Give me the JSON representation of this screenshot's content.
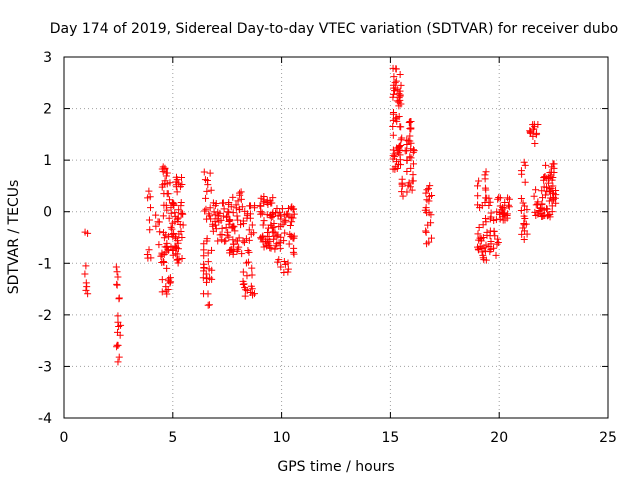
{
  "chart_data": {
    "type": "scatter",
    "title": "Day 174 of 2019, Sidereal Day-to-day VTEC variation (SDTVAR) for receiver dubo",
    "xlabel": "GPS time / hours",
    "ylabel": "SDTVAR / TECUs",
    "xlim": [
      0,
      25
    ],
    "ylim": [
      -4,
      3
    ],
    "xticks": [
      0,
      5,
      10,
      15,
      20,
      25
    ],
    "yticks": [
      -4,
      -3,
      -2,
      -1,
      0,
      1,
      2,
      3
    ],
    "xtick_labels": [
      "0",
      "5",
      "10",
      "15",
      "20",
      "25"
    ],
    "ytick_labels": [
      "-4",
      "-3",
      "-2",
      "-1",
      "0",
      "1",
      "2",
      "3"
    ],
    "grid": true,
    "marker": "+",
    "color": "#ff0000",
    "clusters": [
      {
        "x": [
          0.95,
          1.1
        ],
        "y": [
          -1.8,
          -0.3
        ],
        "n": 8
      },
      {
        "x": [
          2.4,
          2.6
        ],
        "y": [
          -3.0,
          -0.8
        ],
        "n": 18
      },
      {
        "x": [
          3.8,
          4.0
        ],
        "y": [
          -1.5,
          0.45
        ],
        "n": 10
      },
      {
        "x": [
          4.2,
          4.5
        ],
        "y": [
          -1.1,
          0.0
        ],
        "n": 8
      },
      {
        "x": [
          4.5,
          5.0
        ],
        "y": [
          -1.6,
          0.9
        ],
        "n": 60
      },
      {
        "x": [
          5.0,
          5.5
        ],
        "y": [
          -1.0,
          0.7
        ],
        "n": 50
      },
      {
        "x": [
          6.4,
          6.8
        ],
        "y": [
          -1.85,
          0.9
        ],
        "n": 40
      },
      {
        "x": [
          6.8,
          7.6
        ],
        "y": [
          -0.6,
          0.2
        ],
        "n": 40
      },
      {
        "x": [
          7.6,
          8.2
        ],
        "y": [
          -0.9,
          0.45
        ],
        "n": 40
      },
      {
        "x": [
          8.2,
          8.8
        ],
        "y": [
          -1.65,
          0.2
        ],
        "n": 40
      },
      {
        "x": [
          9.0,
          9.8
        ],
        "y": [
          -0.8,
          0.3
        ],
        "n": 60
      },
      {
        "x": [
          9.8,
          10.6
        ],
        "y": [
          -1.2,
          0.1
        ],
        "n": 50
      },
      {
        "x": [
          15.1,
          15.5
        ],
        "y": [
          0.8,
          2.85
        ],
        "n": 60
      },
      {
        "x": [
          15.5,
          16.1
        ],
        "y": [
          0.3,
          1.8
        ],
        "n": 40
      },
      {
        "x": [
          16.6,
          16.9
        ],
        "y": [
          -0.7,
          0.6
        ],
        "n": 20
      },
      {
        "x": [
          19.0,
          19.4
        ],
        "y": [
          -0.95,
          0.8
        ],
        "n": 35
      },
      {
        "x": [
          19.4,
          20.0
        ],
        "y": [
          -0.95,
          0.3
        ],
        "n": 30
      },
      {
        "x": [
          20.0,
          20.5
        ],
        "y": [
          -0.2,
          0.3
        ],
        "n": 25
      },
      {
        "x": [
          21.0,
          21.3
        ],
        "y": [
          -0.6,
          1.0
        ],
        "n": 20
      },
      {
        "x": [
          21.4,
          21.8
        ],
        "y": [
          1.3,
          1.7
        ],
        "n": 15
      },
      {
        "x": [
          21.6,
          22.0
        ],
        "y": [
          -0.1,
          0.45
        ],
        "n": 20
      },
      {
        "x": [
          22.0,
          22.6
        ],
        "y": [
          -0.1,
          0.95
        ],
        "n": 50
      }
    ]
  }
}
